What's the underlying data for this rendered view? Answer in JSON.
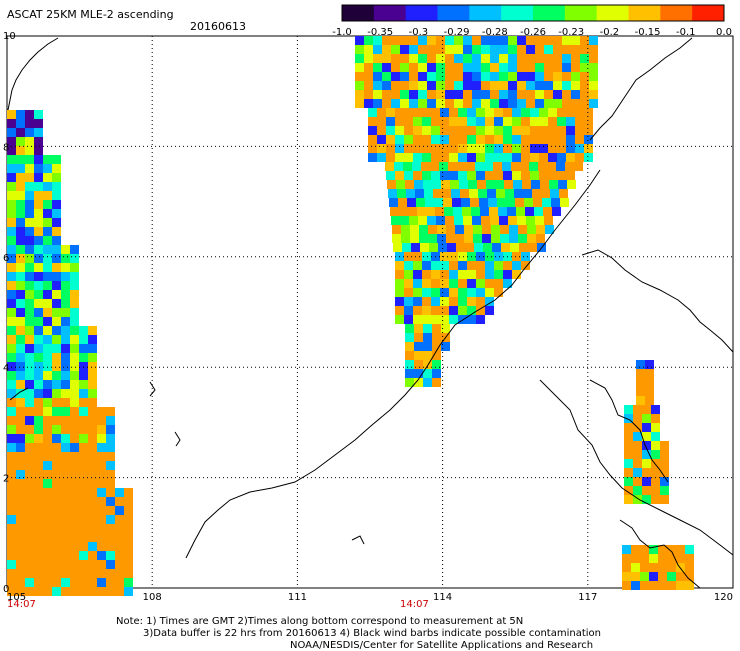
{
  "header": {
    "title": "ASCAT 25KM MLE-2 ascending",
    "date": "20160613"
  },
  "colorbar": {
    "labels": [
      "-1.0",
      "-0.35",
      "-0.3",
      "-0.29",
      "-0.28",
      "-0.26",
      "-0.23",
      "-0.2",
      "-0.15",
      "-0.1",
      "0.0"
    ],
    "colors": [
      "#200038",
      "#4a0090",
      "#2020ff",
      "#0070ff",
      "#00c0ff",
      "#00ffd0",
      "#00ff60",
      "#80ff00",
      "#e0ff00",
      "#ffc000",
      "#ff7000",
      "#ff2000"
    ]
  },
  "axes": {
    "x_ticks": [
      "105",
      "108",
      "111",
      "114",
      "117",
      "120"
    ],
    "y_ticks": [
      "0",
      "2",
      "4",
      "6",
      "8",
      "10"
    ],
    "x_range": [
      105,
      120
    ],
    "y_range": [
      0,
      10
    ]
  },
  "time_labels": [
    "14:07",
    "14:07"
  ],
  "notes": {
    "line1": "Note: 1) Times are GMT 2)Times along bottom correspond to measurement at 5N",
    "line2": "3)Data buffer is 22 hrs from 20160613 4) Black wind barbs indicate possible contamination",
    "line3": "NOAA/NESDIS/Center for Satellite Applications and Research"
  },
  "colors": {
    "orange_fill": "#ff9900",
    "grid": "#000000",
    "time_label": "#cc0000"
  }
}
